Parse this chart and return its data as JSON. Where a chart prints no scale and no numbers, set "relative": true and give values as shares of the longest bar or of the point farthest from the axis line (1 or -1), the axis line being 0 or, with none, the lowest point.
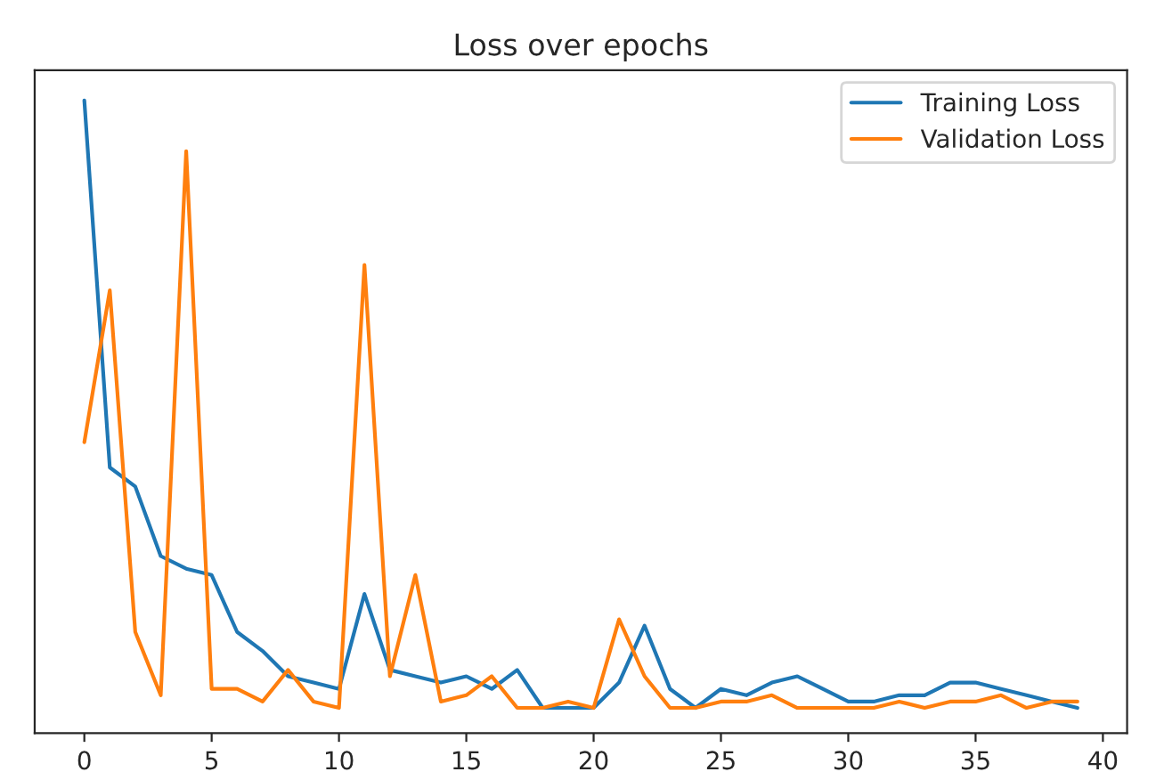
{
  "chart_data": {
    "type": "line",
    "title": "Loss over epochs",
    "relative": true,
    "x": [
      0,
      1,
      2,
      3,
      4,
      5,
      6,
      7,
      8,
      9,
      10,
      11,
      12,
      13,
      14,
      15,
      16,
      17,
      18,
      19,
      20,
      21,
      22,
      23,
      24,
      25,
      26,
      27,
      28,
      29,
      30,
      31,
      32,
      33,
      34,
      35,
      36,
      37,
      38,
      39
    ],
    "xlim": [
      -1.95,
      40.95
    ],
    "xticks": [
      0,
      5,
      10,
      15,
      20,
      25,
      30,
      35,
      40
    ],
    "series": [
      {
        "name": "Training Loss",
        "color": "#1f77b4",
        "values": [
          1.0,
          0.42,
          0.39,
          0.28,
          0.26,
          0.25,
          0.16,
          0.13,
          0.09,
          0.08,
          0.07,
          0.22,
          0.1,
          0.09,
          0.08,
          0.09,
          0.07,
          0.1,
          0.04,
          0.04,
          0.04,
          0.08,
          0.17,
          0.07,
          0.04,
          0.07,
          0.06,
          0.08,
          0.09,
          0.07,
          0.05,
          0.05,
          0.06,
          0.06,
          0.08,
          0.08,
          0.07,
          0.06,
          0.05,
          0.04
        ]
      },
      {
        "name": "Validation Loss",
        "color": "#ff7f0e",
        "values": [
          0.46,
          0.7,
          0.16,
          0.06,
          0.92,
          0.07,
          0.07,
          0.05,
          0.1,
          0.05,
          0.04,
          0.74,
          0.09,
          0.25,
          0.05,
          0.06,
          0.09,
          0.04,
          0.04,
          0.05,
          0.04,
          0.18,
          0.09,
          0.04,
          0.04,
          0.05,
          0.05,
          0.06,
          0.04,
          0.04,
          0.04,
          0.04,
          0.05,
          0.04,
          0.05,
          0.05,
          0.06,
          0.04,
          0.05,
          0.05
        ]
      }
    ],
    "legend": "top right",
    "grid": false
  }
}
